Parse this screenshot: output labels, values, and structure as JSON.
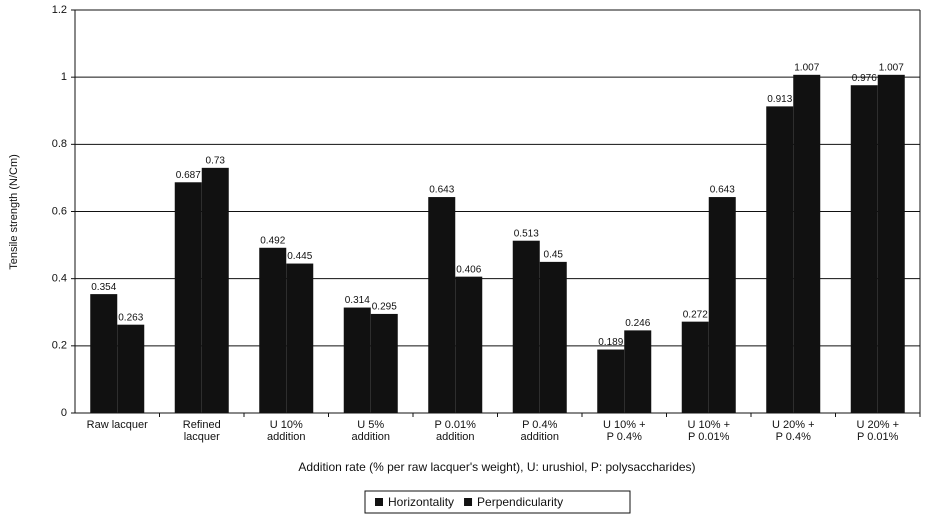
{
  "chart_data": {
    "type": "bar",
    "y_label": "Tensile strength (N/Cm)",
    "x_label": "Addition rate (% per raw lacquer's weight), U: urushiol, P: polysaccharides)",
    "categories": [
      "Raw lacquer",
      "Refined\nlacquer",
      "U 10%\naddition",
      "U 5%\naddition",
      "P 0.01%\naddition",
      "P 0.4%\naddition",
      "U 10%  +\nP 0.4%",
      "U 10%  +\nP 0.01%",
      "U 20%  +\nP 0.4%",
      "U 20%  +\nP 0.01%"
    ],
    "series": [
      {
        "name": "Horizontality",
        "color": "#111111",
        "values": [
          0.354,
          0.687,
          0.492,
          0.314,
          0.643,
          0.513,
          0.189,
          0.272,
          0.913,
          0.976
        ]
      },
      {
        "name": "Perpendicularity",
        "color": "#111111",
        "values": [
          0.263,
          0.73,
          0.445,
          0.295,
          0.406,
          0.45,
          0.246,
          0.643,
          1.007,
          1.007
        ]
      }
    ],
    "ylim": [
      0,
      1.2
    ],
    "yticks": [
      0,
      0.2,
      0.4,
      0.6,
      0.8,
      1,
      1.2
    ],
    "grid": true,
    "legend": "bottom"
  }
}
